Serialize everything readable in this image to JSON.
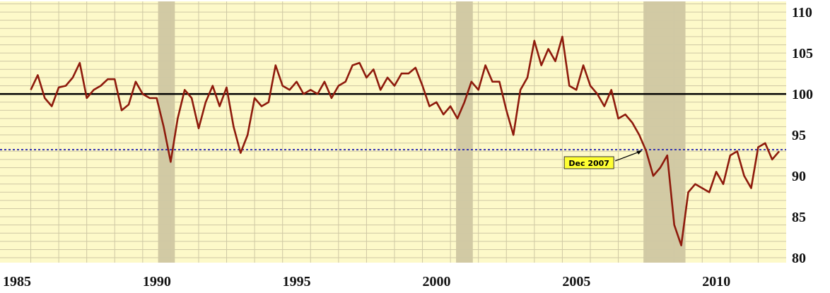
{
  "chart_data": {
    "type": "line",
    "x": [
      1986.0,
      1986.25,
      1986.5,
      1986.75,
      1987.0,
      1987.25,
      1987.5,
      1987.75,
      1988.0,
      1988.25,
      1988.5,
      1988.75,
      1989.0,
      1989.25,
      1989.5,
      1989.75,
      1990.0,
      1990.25,
      1990.5,
      1990.75,
      1991.0,
      1991.25,
      1991.5,
      1991.75,
      1992.0,
      1992.25,
      1992.5,
      1992.75,
      1993.0,
      1993.25,
      1993.5,
      1993.75,
      1994.0,
      1994.25,
      1994.5,
      1994.75,
      1995.0,
      1995.25,
      1995.5,
      1995.75,
      1996.0,
      1996.25,
      1996.5,
      1996.75,
      1997.0,
      1997.25,
      1997.5,
      1997.75,
      1998.0,
      1998.25,
      1998.5,
      1998.75,
      1999.0,
      1999.25,
      1999.5,
      1999.75,
      2000.0,
      2000.25,
      2000.5,
      2000.75,
      2001.0,
      2001.25,
      2001.5,
      2001.75,
      2002.0,
      2002.25,
      2002.5,
      2002.75,
      2003.0,
      2003.25,
      2003.5,
      2003.75,
      2004.0,
      2004.25,
      2004.5,
      2004.75,
      2005.0,
      2005.25,
      2005.5,
      2005.75,
      2006.0,
      2006.25,
      2006.5,
      2006.75,
      2007.0,
      2007.25,
      2007.5,
      2007.75,
      2008.0,
      2008.25,
      2008.5,
      2008.75,
      2009.0,
      2009.25,
      2009.5,
      2009.75,
      2010.0,
      2010.25,
      2010.5,
      2010.75,
      2011.0,
      2011.25,
      2011.5,
      2011.75,
      2012.0,
      2012.25,
      2012.5,
      2012.75
    ],
    "series": [
      {
        "color": "#8e1a0c",
        "values": [
          100.5,
          102.3,
          99.5,
          98.5,
          100.8,
          101,
          102,
          103.8,
          99.5,
          100.5,
          101,
          101.8,
          101.8,
          98,
          98.7,
          101.5,
          100,
          99.5,
          99.5,
          96,
          91.7,
          97,
          100.5,
          99.5,
          95.8,
          99,
          101,
          98.5,
          100.8,
          96,
          92.8,
          95,
          99.5,
          98.5,
          99,
          103.5,
          101,
          100.5,
          101.5,
          100,
          100.5,
          100,
          101.5,
          99.5,
          101,
          101.5,
          103.5,
          103.8,
          102,
          103,
          100.5,
          102,
          101,
          102.5,
          102.5,
          103.2,
          101,
          98.5,
          99,
          97.5,
          98.5,
          97,
          99,
          101.5,
          100.5,
          103.5,
          101.5,
          101.5,
          98,
          95,
          100.5,
          102,
          106.5,
          103.5,
          105.5,
          104,
          107,
          101,
          100.5,
          103.5,
          101,
          100,
          98.5,
          100.5,
          97,
          97.5,
          96.5,
          95,
          93,
          90,
          91,
          92.5,
          84,
          81.5,
          88,
          89,
          88.5,
          88,
          90.5,
          89,
          92.5,
          93,
          90,
          88.5,
          93.5,
          94,
          92,
          93
        ]
      }
    ],
    "xlim": [
      1984.9,
      2013.0
    ],
    "ylim": [
      79.4,
      111.3
    ],
    "xticks": [
      1985,
      1990,
      1995,
      2000,
      2005,
      2010
    ],
    "yticks": [
      80,
      85,
      90,
      95,
      100,
      105,
      110
    ],
    "xgrid": [
      1986,
      1987,
      1988,
      1989,
      1990,
      1991,
      1992,
      1993,
      1994,
      1995,
      1996,
      1997,
      1998,
      1999,
      2000,
      2001,
      2002,
      2003,
      2004,
      2005,
      2006,
      2007,
      2008,
      2009,
      2010,
      2011,
      2012
    ],
    "ygrid": [
      80,
      81,
      82,
      83,
      84,
      85,
      86,
      87,
      88,
      89,
      90,
      91,
      92,
      93,
      94,
      95,
      96,
      97,
      98,
      99,
      100,
      101,
      102,
      103,
      104,
      105,
      106,
      107,
      108,
      109,
      110,
      111
    ],
    "recessions": [
      [
        1990.55,
        1991.15
      ],
      [
        2001.2,
        2001.8
      ],
      [
        2007.9,
        2009.4
      ]
    ],
    "reference_lines": [
      {
        "y": 100,
        "color": "#000000"
      },
      {
        "y": 93.2,
        "color": "#2a2ab0"
      }
    ],
    "annotation": {
      "text": "Dec 2007",
      "x": 2007.9,
      "y": 93.2
    },
    "background": "#fdf9c9",
    "grid_color": "#cfc8a4",
    "recession_color": "#cdc4a0"
  }
}
